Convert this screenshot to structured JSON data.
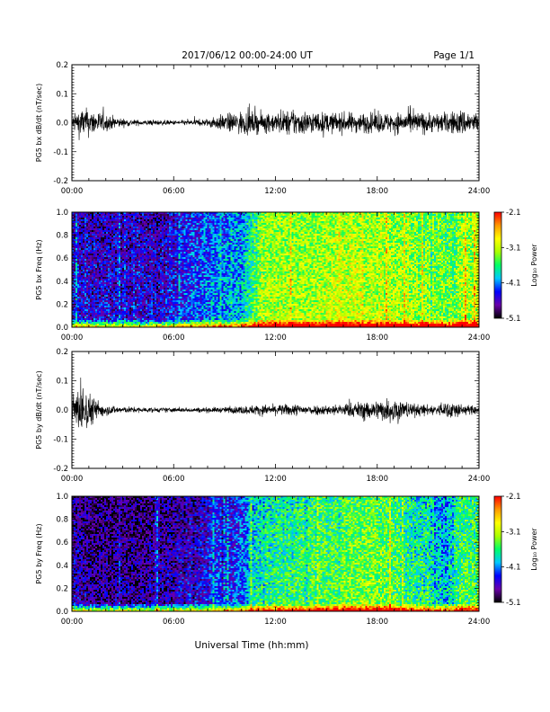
{
  "header": {
    "title": "2017/06/12  00:00-24:00 UT",
    "page": "Page 1/1"
  },
  "footer": {
    "xlabel": "Universal Time (hh:mm)"
  },
  "colorbar": {
    "label": "Log₁₀ Power",
    "tick_labels": [
      "-2.1",
      "-3.1",
      "-4.1",
      "-5.1"
    ],
    "range": [
      -5.1,
      -2.1
    ],
    "colormap": "rainbow",
    "stops": [
      "#000000",
      "#6a00aa",
      "#0000ff",
      "#00c8ff",
      "#00ff66",
      "#aaff00",
      "#ffff00",
      "#ff9900",
      "#ff0000"
    ]
  },
  "chart_data": [
    {
      "type": "line",
      "panel": "bx-dbdt",
      "ylabel": "PG5 bx dB/dt (nT/sec)",
      "x_ticks": [
        "00:00",
        "06:00",
        "12:00",
        "18:00",
        "24:00"
      ],
      "y_ticks": [
        "0.2",
        "0.1",
        "0.0",
        "-0.1",
        "-0.2"
      ],
      "xlim": [
        0,
        24
      ],
      "ylim": [
        -0.2,
        0.2
      ],
      "line_color": "#000000",
      "envelope": {
        "hours": [
          0,
          0.5,
          1,
          1.5,
          2,
          3,
          4,
          5,
          6,
          7,
          8,
          8.5,
          9,
          10,
          11,
          12,
          13,
          14,
          15,
          16,
          17,
          18,
          19,
          20,
          21,
          22,
          23,
          24
        ],
        "amplitude": [
          0.02,
          0.045,
          0.04,
          0.035,
          0.025,
          0.012,
          0.008,
          0.008,
          0.007,
          0.008,
          0.012,
          0.02,
          0.025,
          0.035,
          0.03,
          0.03,
          0.04,
          0.035,
          0.03,
          0.03,
          0.03,
          0.03,
          0.03,
          0.035,
          0.03,
          0.03,
          0.04,
          0.03
        ]
      }
    },
    {
      "type": "heatmap",
      "panel": "bx-spectrogram",
      "ylabel": "PG5 bx Freq (Hz)",
      "x_ticks": [
        "00:00",
        "06:00",
        "12:00",
        "18:00",
        "24:00"
      ],
      "y_ticks": [
        "1.0",
        "0.8",
        "0.6",
        "0.4",
        "0.2",
        "0.0"
      ],
      "xlim": [
        0,
        24
      ],
      "ylim": [
        0.0,
        1.0
      ],
      "z_range": [
        -5.1,
        -2.1
      ],
      "background_log_power": {
        "hours": [
          0,
          1,
          2,
          4,
          6,
          7,
          8,
          9,
          10,
          10.5,
          11,
          12,
          14,
          16,
          18,
          20,
          22,
          22.5,
          23,
          24
        ],
        "value": [
          -4.4,
          -4.5,
          -4.5,
          -4.5,
          -4.4,
          -4.2,
          -4.1,
          -4.0,
          -3.9,
          -3.6,
          -3.3,
          -3.1,
          -3.2,
          -3.0,
          -3.1,
          -3.2,
          -3.3,
          -3.4,
          -3.1,
          -3.1
        ]
      }
    },
    {
      "type": "line",
      "panel": "by-dbdt",
      "ylabel": "PG5 by dB/dt (nT/sec)",
      "x_ticks": [
        "00:00",
        "06:00",
        "12:00",
        "18:00",
        "24:00"
      ],
      "y_ticks": [
        "0.2",
        "0.1",
        "0.0",
        "-0.1",
        "-0.2"
      ],
      "xlim": [
        0,
        24
      ],
      "ylim": [
        -0.2,
        0.2
      ],
      "line_color": "#000000",
      "envelope": {
        "hours": [
          0,
          0.3,
          0.6,
          1,
          1.5,
          2,
          3,
          4,
          5,
          6,
          7,
          8,
          9,
          10,
          11,
          12,
          13,
          14,
          15,
          16,
          17,
          18,
          19,
          20,
          21,
          22,
          22.5,
          23,
          24
        ],
        "amplitude": [
          0.02,
          0.06,
          0.08,
          0.05,
          0.03,
          0.015,
          0.01,
          0.008,
          0.007,
          0.007,
          0.007,
          0.008,
          0.008,
          0.012,
          0.015,
          0.015,
          0.018,
          0.015,
          0.015,
          0.018,
          0.025,
          0.03,
          0.04,
          0.02,
          0.015,
          0.02,
          0.03,
          0.015,
          0.012
        ]
      }
    },
    {
      "type": "heatmap",
      "panel": "by-spectrogram",
      "ylabel": "PG5 by Freq (Hz)",
      "x_ticks": [
        "00:00",
        "06:00",
        "12:00",
        "18:00",
        "24:00"
      ],
      "y_ticks": [
        "1.0",
        "0.8",
        "0.6",
        "0.4",
        "0.2",
        "0.0"
      ],
      "xlim": [
        0,
        24
      ],
      "ylim": [
        0.0,
        1.0
      ],
      "z_range": [
        -5.1,
        -2.1
      ],
      "background_log_power": {
        "hours": [
          0,
          1,
          2,
          4,
          6,
          7,
          8,
          9,
          10,
          10.5,
          11,
          12,
          14,
          16,
          17,
          18,
          19,
          20,
          21,
          22,
          23,
          24
        ],
        "value": [
          -4.6,
          -4.7,
          -4.7,
          -4.7,
          -4.6,
          -4.5,
          -4.4,
          -4.3,
          -4.2,
          -3.9,
          -3.7,
          -3.6,
          -3.5,
          -3.4,
          -3.3,
          -3.3,
          -3.4,
          -3.6,
          -3.7,
          -3.9,
          -3.5,
          -3.5
        ]
      }
    }
  ]
}
